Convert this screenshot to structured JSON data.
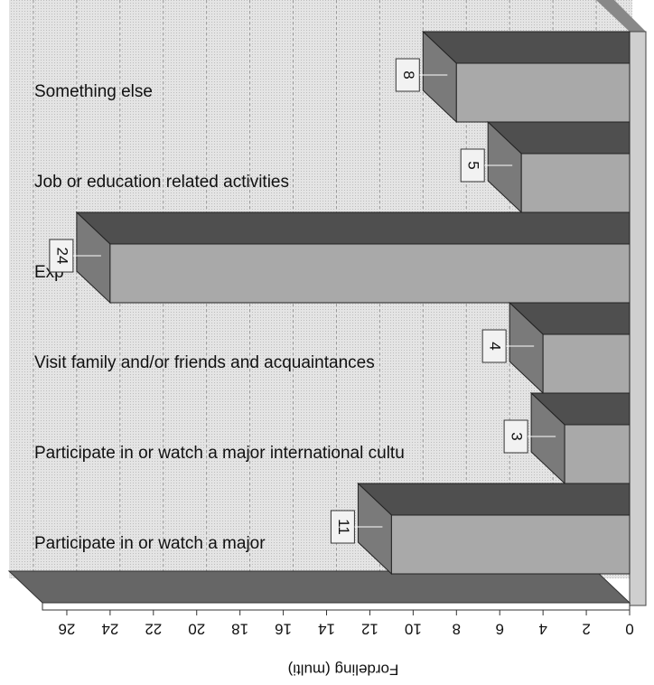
{
  "chart_data": {
    "type": "bar",
    "orientation": "horizontal",
    "categories": [
      "Something else",
      "Job or education related activities",
      "Exp",
      "Visit family and/or friends and acquaintances",
      "Participate in or watch a major international cultu",
      "Participate in or watch a major"
    ],
    "values": [
      8,
      5,
      24,
      4,
      3,
      11
    ],
    "color": "#a9a9a9",
    "xlabel": "Fordeling (multi)",
    "xlim": [
      0,
      27
    ],
    "xticks": [
      0,
      2,
      4,
      6,
      8,
      10,
      12,
      14,
      16,
      18,
      20,
      22,
      24,
      26
    ],
    "grid": true
  }
}
